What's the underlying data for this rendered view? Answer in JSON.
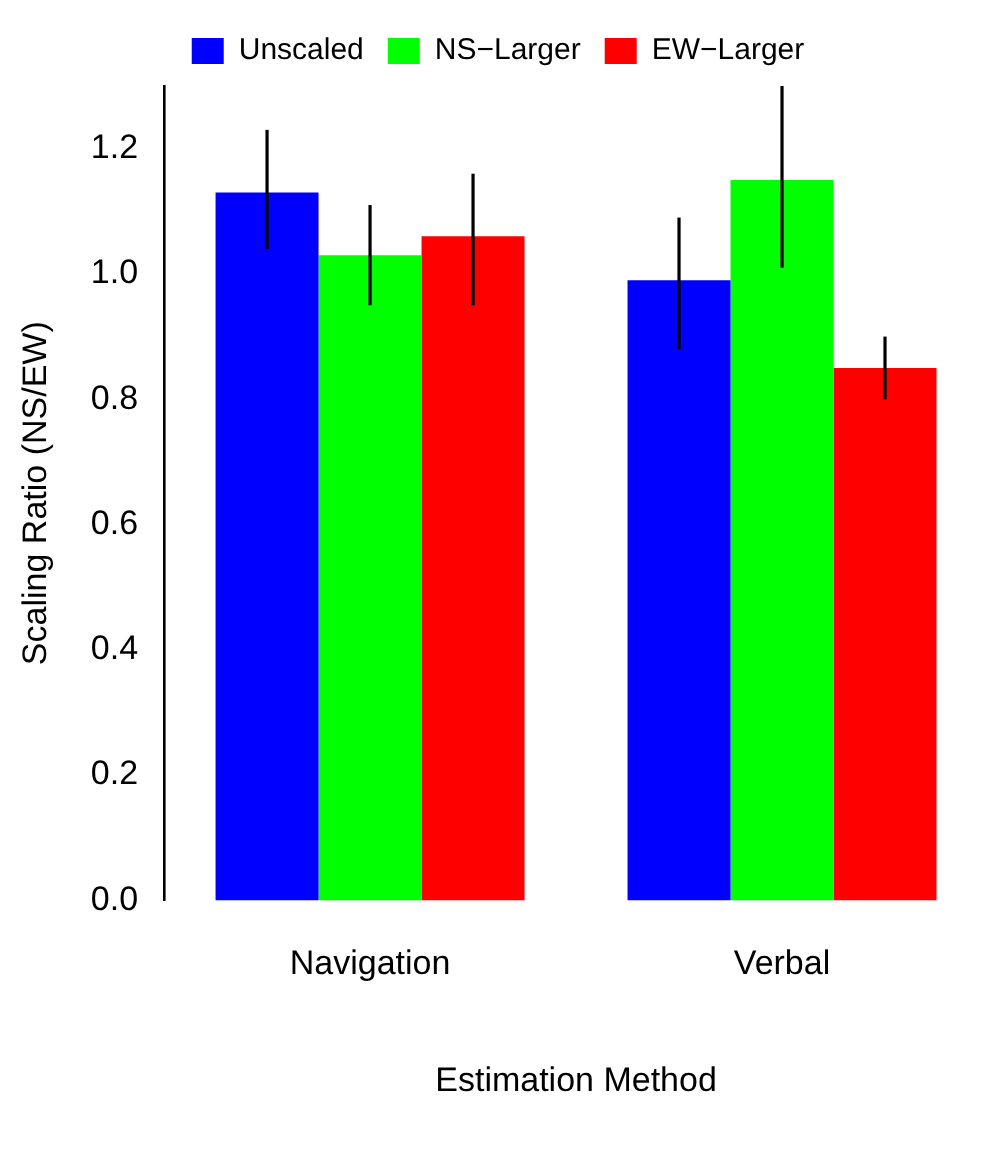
{
  "chart_data": {
    "type": "bar",
    "xlabel": "Estimation Method",
    "ylabel": "Scaling Ratio (NS/EW)",
    "categories": [
      "Navigation",
      "Verbal"
    ],
    "series": [
      {
        "name": "Unscaled",
        "color": "#0000ff",
        "values": [
          1.13,
          0.99
        ],
        "errors": [
          [
            1.04,
            1.23
          ],
          [
            0.88,
            1.09
          ]
        ]
      },
      {
        "name": "NS−Larger",
        "color": "#00ff00",
        "values": [
          1.03,
          1.15
        ],
        "errors": [
          [
            0.95,
            1.11
          ],
          [
            1.01,
            1.3
          ]
        ]
      },
      {
        "name": "EW−Larger",
        "color": "#ff0000",
        "values": [
          1.06,
          0.85
        ],
        "errors": [
          [
            0.95,
            1.16
          ],
          [
            0.8,
            0.9
          ]
        ]
      }
    ],
    "ylim": [
      0,
      1.3
    ],
    "yticks": [
      {
        "value": 0,
        "label": "0.0"
      },
      0.2,
      0.4,
      0.6,
      0.8,
      {
        "value": 1,
        "label": "1.0"
      },
      1.2
    ],
    "grid": false,
    "legend": "top"
  }
}
